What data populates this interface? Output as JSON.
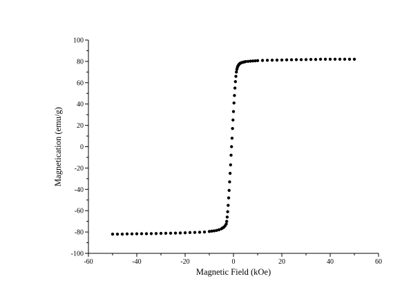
{
  "chart_data": {
    "type": "scatter",
    "title": "",
    "xlabel": "Magnetic Field (kOe)",
    "ylabel": "Magnetication (emu/g)",
    "xlim": [
      -60,
      60
    ],
    "ylim": [
      -100,
      100
    ],
    "x_ticks": [
      -60,
      -40,
      -20,
      0,
      20,
      40,
      60
    ],
    "y_ticks": [
      -100,
      -80,
      -60,
      -40,
      -20,
      0,
      20,
      40,
      60,
      80,
      100
    ],
    "grid": false,
    "legend": "none",
    "marker_color": "#000000",
    "series": [
      {
        "x": [
          -50,
          -48,
          -46,
          -44,
          -42,
          -40,
          -38,
          -36,
          -34,
          -32,
          -30,
          -28,
          -26,
          -24,
          -22,
          -20,
          -18,
          -16,
          -14,
          -12,
          -10,
          -9,
          -8,
          -7,
          -6,
          -5,
          -4.5,
          -4,
          -3.5,
          -3,
          -2.8,
          -2.6,
          -2.4,
          -2.2,
          -2,
          -1.8,
          -1.6,
          -1.4,
          -1.2,
          -1,
          -0.8,
          -0.6,
          -0.4,
          -0.2,
          0,
          0.2,
          0.4,
          0.6,
          0.8,
          1,
          1.2,
          1.4,
          1.6,
          1.8,
          2,
          2.2,
          2.4,
          2.6,
          2.8,
          3,
          3.5,
          4,
          4.5,
          5,
          6,
          7,
          8,
          9,
          10,
          12,
          14,
          16,
          18,
          20,
          22,
          24,
          26,
          28,
          30,
          32,
          34,
          36,
          38,
          40,
          42,
          44,
          46,
          48,
          50
        ],
        "y": [
          -82.0,
          -82.0,
          -82.0,
          -81.8,
          -81.8,
          -81.7,
          -81.6,
          -81.6,
          -81.5,
          -81.4,
          -81.3,
          -81.2,
          -81.1,
          -81.0,
          -80.9,
          -80.7,
          -80.5,
          -80.4,
          -80.2,
          -80.0,
          -79.5,
          -79.2,
          -78.9,
          -78.5,
          -77.9,
          -77.0,
          -76.2,
          -75.5,
          -74.2,
          -72.5,
          -70.0,
          -66.0,
          -61.0,
          -55.0,
          -48.0,
          -41.0,
          -33.0,
          -25.0,
          -17.0,
          -8.0,
          0.0,
          8.0,
          17.0,
          25.0,
          33.0,
          41.0,
          48.0,
          55.0,
          61.0,
          66.0,
          70.0,
          72.5,
          74.2,
          75.5,
          76.2,
          77.0,
          77.5,
          77.9,
          78.2,
          78.5,
          78.9,
          79.2,
          79.5,
          79.8,
          80.0,
          80.2,
          80.4,
          80.5,
          80.7,
          80.9,
          81.0,
          81.1,
          81.2,
          81.3,
          81.4,
          81.5,
          81.6,
          81.6,
          81.7,
          81.8,
          81.8,
          82.0,
          82.0,
          82.0,
          82.0,
          82.0,
          82.0,
          82.0,
          82.0
        ]
      }
    ]
  }
}
